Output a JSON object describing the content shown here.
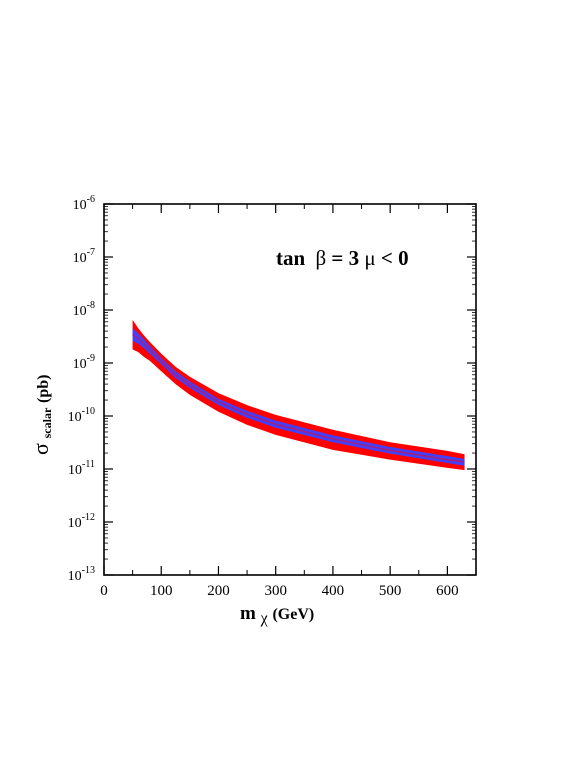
{
  "chart_data": {
    "type": "area",
    "title": "",
    "annotation": {
      "prefix": "tan",
      "beta": "β",
      "equals": " = 3  ",
      "mu": "μ",
      "condition": " < 0"
    },
    "xlabel": {
      "main": "m",
      "sub": "χ",
      "unit": " (GeV)"
    },
    "ylabel": {
      "main": "σ",
      "sub": "scalar",
      "unit": " (pb)"
    },
    "xlim": [
      0,
      650
    ],
    "ylim": [
      1e-13,
      1e-06
    ],
    "yscale": "log",
    "grid": false,
    "x_ticks": [
      0,
      100,
      200,
      300,
      400,
      500,
      600
    ],
    "x_tick_labels": [
      "0",
      "100",
      "200",
      "300",
      "400",
      "500",
      "600"
    ],
    "y_ticks": [
      {
        "base": "10",
        "exp": "-13",
        "value": 1e-13
      },
      {
        "base": "10",
        "exp": "-12",
        "value": 1e-12
      },
      {
        "base": "10",
        "exp": "-11",
        "value": 1e-11
      },
      {
        "base": "10",
        "exp": "-10",
        "value": 1e-10
      },
      {
        "base": "10",
        "exp": "-9",
        "value": 1e-09
      },
      {
        "base": "10",
        "exp": "-8",
        "value": 1e-08
      },
      {
        "base": "10",
        "exp": "-7",
        "value": 1e-07
      },
      {
        "base": "10",
        "exp": "-6",
        "value": 1e-06
      }
    ],
    "series": [
      {
        "color": "#ff0000",
        "role": "band",
        "x": [
          50,
          60,
          70,
          80,
          100,
          125,
          150,
          200,
          250,
          300,
          400,
          500,
          600,
          630
        ],
        "upper": [
          6.5e-09,
          4.5e-09,
          3.3e-09,
          2.5e-09,
          1.5e-09,
          8.5e-10,
          5.5e-10,
          2.7e-10,
          1.6e-10,
          1.05e-10,
          5.5e-11,
          3.2e-11,
          2.2e-11,
          1.9e-11
        ],
        "lower": [
          1.8e-09,
          1.6e-09,
          1.3e-09,
          1.1e-09,
          7e-10,
          4e-10,
          2.5e-10,
          1.2e-10,
          6.8e-11,
          4.4e-11,
          2.3e-11,
          1.5e-11,
          1.05e-11,
          9.5e-12
        ]
      },
      {
        "color": "#4040ff",
        "role": "band",
        "x": [
          50,
          60,
          70,
          80,
          100,
          125,
          150,
          200,
          250,
          300,
          400,
          500,
          600,
          630
        ],
        "upper": [
          4.5e-09,
          3.6e-09,
          2.8e-09,
          2.1e-09,
          1.25e-09,
          7e-10,
          4.5e-10,
          2.1e-10,
          1.25e-10,
          8.2e-11,
          4.3e-11,
          2.6e-11,
          1.75e-11,
          1.55e-11
        ],
        "lower": [
          2.6e-09,
          2.3e-09,
          1.9e-09,
          1.5e-09,
          9.5e-10,
          5.2e-10,
          3.4e-10,
          1.6e-10,
          9.2e-11,
          6e-11,
          3.2e-11,
          1.95e-11,
          1.3e-11,
          1.15e-11
        ]
      },
      {
        "color": "#a02080",
        "role": "line",
        "x": [
          50,
          60,
          70,
          80,
          100,
          125,
          150,
          200,
          250,
          300,
          400,
          500,
          600,
          630
        ],
        "values": [
          3.4e-09,
          2.9e-09,
          2.3e-09,
          1.8e-09,
          1.1e-09,
          6e-10,
          3.9e-10,
          1.85e-10,
          1.08e-10,
          7e-11,
          3.7e-11,
          2.25e-11,
          1.5e-11,
          1.35e-11
        ]
      }
    ]
  }
}
